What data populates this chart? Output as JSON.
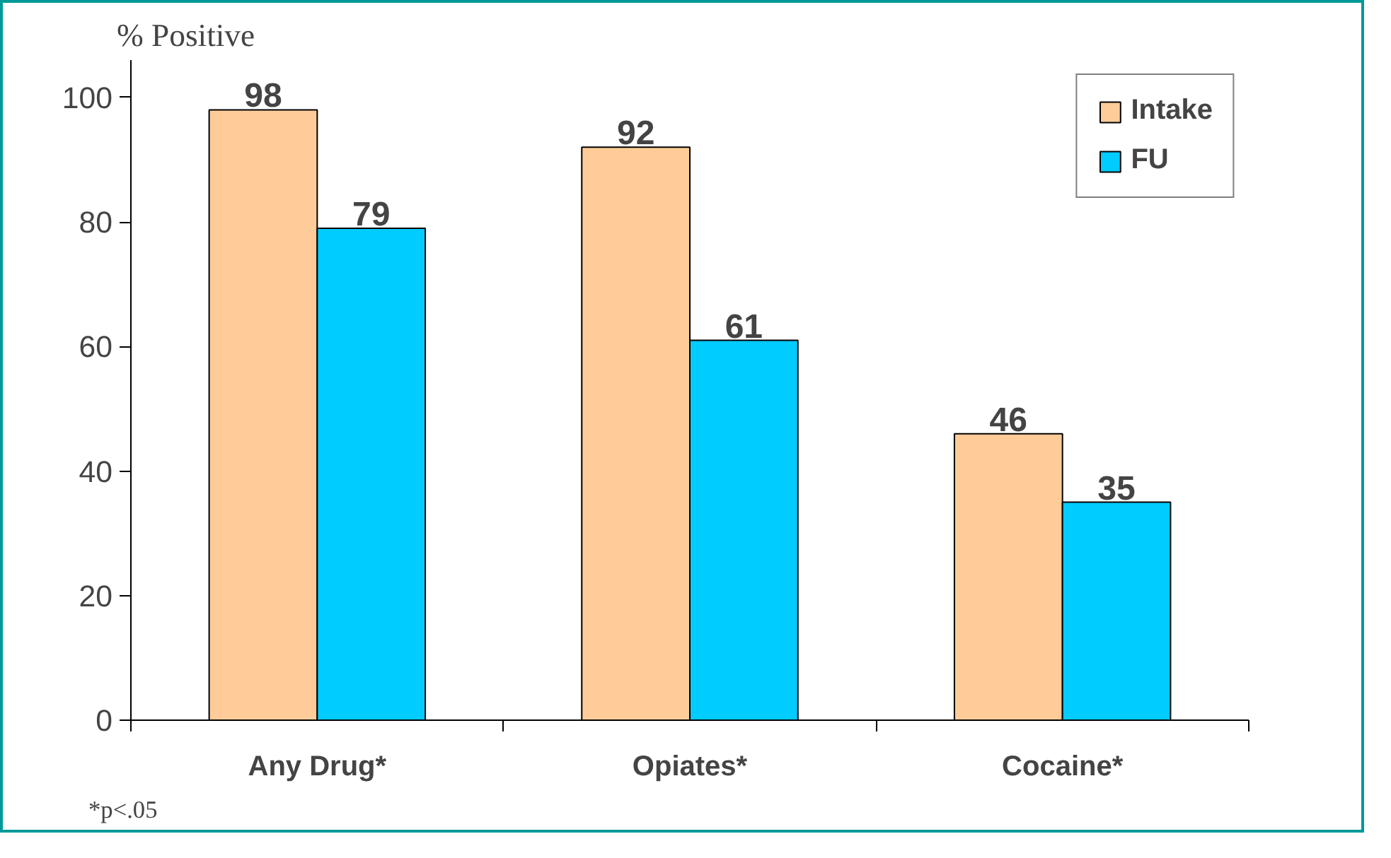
{
  "chart_data": {
    "type": "bar",
    "ylabel": "% Positive",
    "categories": [
      "Any Drug*",
      "Opiates*",
      "Cocaine*"
    ],
    "series": [
      {
        "name": "Intake",
        "color": "#ffcc99",
        "values": [
          98,
          92,
          46
        ]
      },
      {
        "name": "FU",
        "color": "#00ccff",
        "values": [
          79,
          61,
          35
        ]
      }
    ],
    "ylim": [
      0,
      106
    ],
    "yticks": [
      0,
      20,
      40,
      60,
      80,
      100
    ],
    "data_labels": true,
    "legend": "top right",
    "grid": false,
    "annotations": [
      "*p<.05"
    ]
  }
}
